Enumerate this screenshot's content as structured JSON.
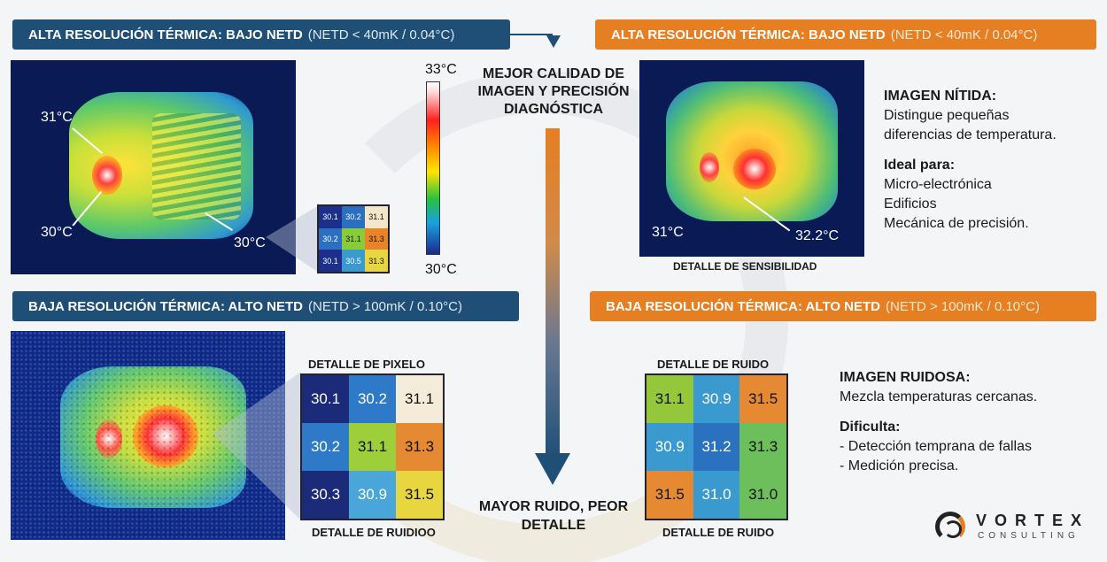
{
  "banners": {
    "top_left": {
      "bold": "ALTA RESOLUCIÓN TÉRMICA: BAJO NETD",
      "sub": "(NETD < 40mK / 0.04°C)"
    },
    "top_right": {
      "bold": "ALTA RESOLUCIÓN TÉRMICA: BAJO NETD",
      "sub": "(NETD < 40mK / 0.04°C)"
    },
    "bottom_left": {
      "bold": "BAJA RESOLUCIÓN TÉRMICA: ALTO NETD",
      "sub": "(NETD > 100mK / 0.10°C)"
    },
    "bottom_right": {
      "bold": "BAJA RESOLUCIÓN TÉRMICA: ALTO NETD",
      "sub": "(NETD > 100mK / 0.10°C)"
    }
  },
  "top_left_image": {
    "labels": [
      "31°C",
      "30°C",
      "30°C"
    ]
  },
  "scale": {
    "max": "33°C",
    "min": "30°C"
  },
  "small_grid": {
    "cells": [
      "30.1",
      "30.2",
      "31.1",
      "30.2",
      "31.1",
      "31.3",
      "30.1",
      "30.5",
      "31.3"
    ],
    "colors": [
      "#1c2f8a",
      "#2a6fc0",
      "#f4e6c8",
      "#2a6fc0",
      "#8acb3a",
      "#e8842a",
      "#1c2f8a",
      "#3a9ad0",
      "#e8d640"
    ]
  },
  "center": {
    "top_text": "MEJOR CALIDAD DE IMAGEN Y PRECISIÓN DIAGNÓSTICA",
    "bottom_text": "MAYOR RUIDO, PEOR DETALLE"
  },
  "top_right_image": {
    "labels": [
      "31°C",
      "32.2°C"
    ],
    "caption": "DETALLE DE SENSIBILIDAD"
  },
  "top_info": {
    "heading1": "IMAGEN NÍTIDA:",
    "line1": "Distingue pequeñas",
    "line2": "diferencias de temperatura.",
    "heading2": "Ideal para:",
    "items": [
      "Micro-electrónica",
      "Edificios",
      "Mecánica de precisión."
    ]
  },
  "pixel_grid": {
    "title": "DETALLE DE PIXELO",
    "caption": "DETALLE DE RUIDIOO",
    "cells": [
      "30.1",
      "30.2",
      "31.1",
      "30.2",
      "31.1",
      "31.3",
      "30.3",
      "30.9",
      "31.5"
    ],
    "colors": [
      "#1c2a7a",
      "#2f7ac8",
      "#f4ecd8",
      "#2f7ac8",
      "#9ccf3a",
      "#e58a32",
      "#1c2a7a",
      "#4aa6d8",
      "#e8d640"
    ]
  },
  "noise_grid": {
    "title": "DETALLE DE RUIDO",
    "caption": "DETALLE DE RUIDO",
    "cells": [
      "31.1",
      "30.9",
      "31.5",
      "30.9",
      "31.2",
      "31.3",
      "31.5",
      "31.0",
      "31.0"
    ],
    "colors": [
      "#94c83a",
      "#3a9ad0",
      "#e58a32",
      "#3a9ad0",
      "#2a72c0",
      "#6cbf5a",
      "#e58a32",
      "#3a9ad0",
      "#6cbf5a"
    ]
  },
  "bottom_info": {
    "heading1": "IMAGEN RUIDOSA:",
    "line1": "Mezcla temperaturas cercanas.",
    "heading2": "Dificulta:",
    "items": [
      "- Detección temprana de fallas",
      "- Medición precisa."
    ]
  },
  "logo": {
    "name": "VORTEX",
    "sub": "CONSULTING"
  }
}
